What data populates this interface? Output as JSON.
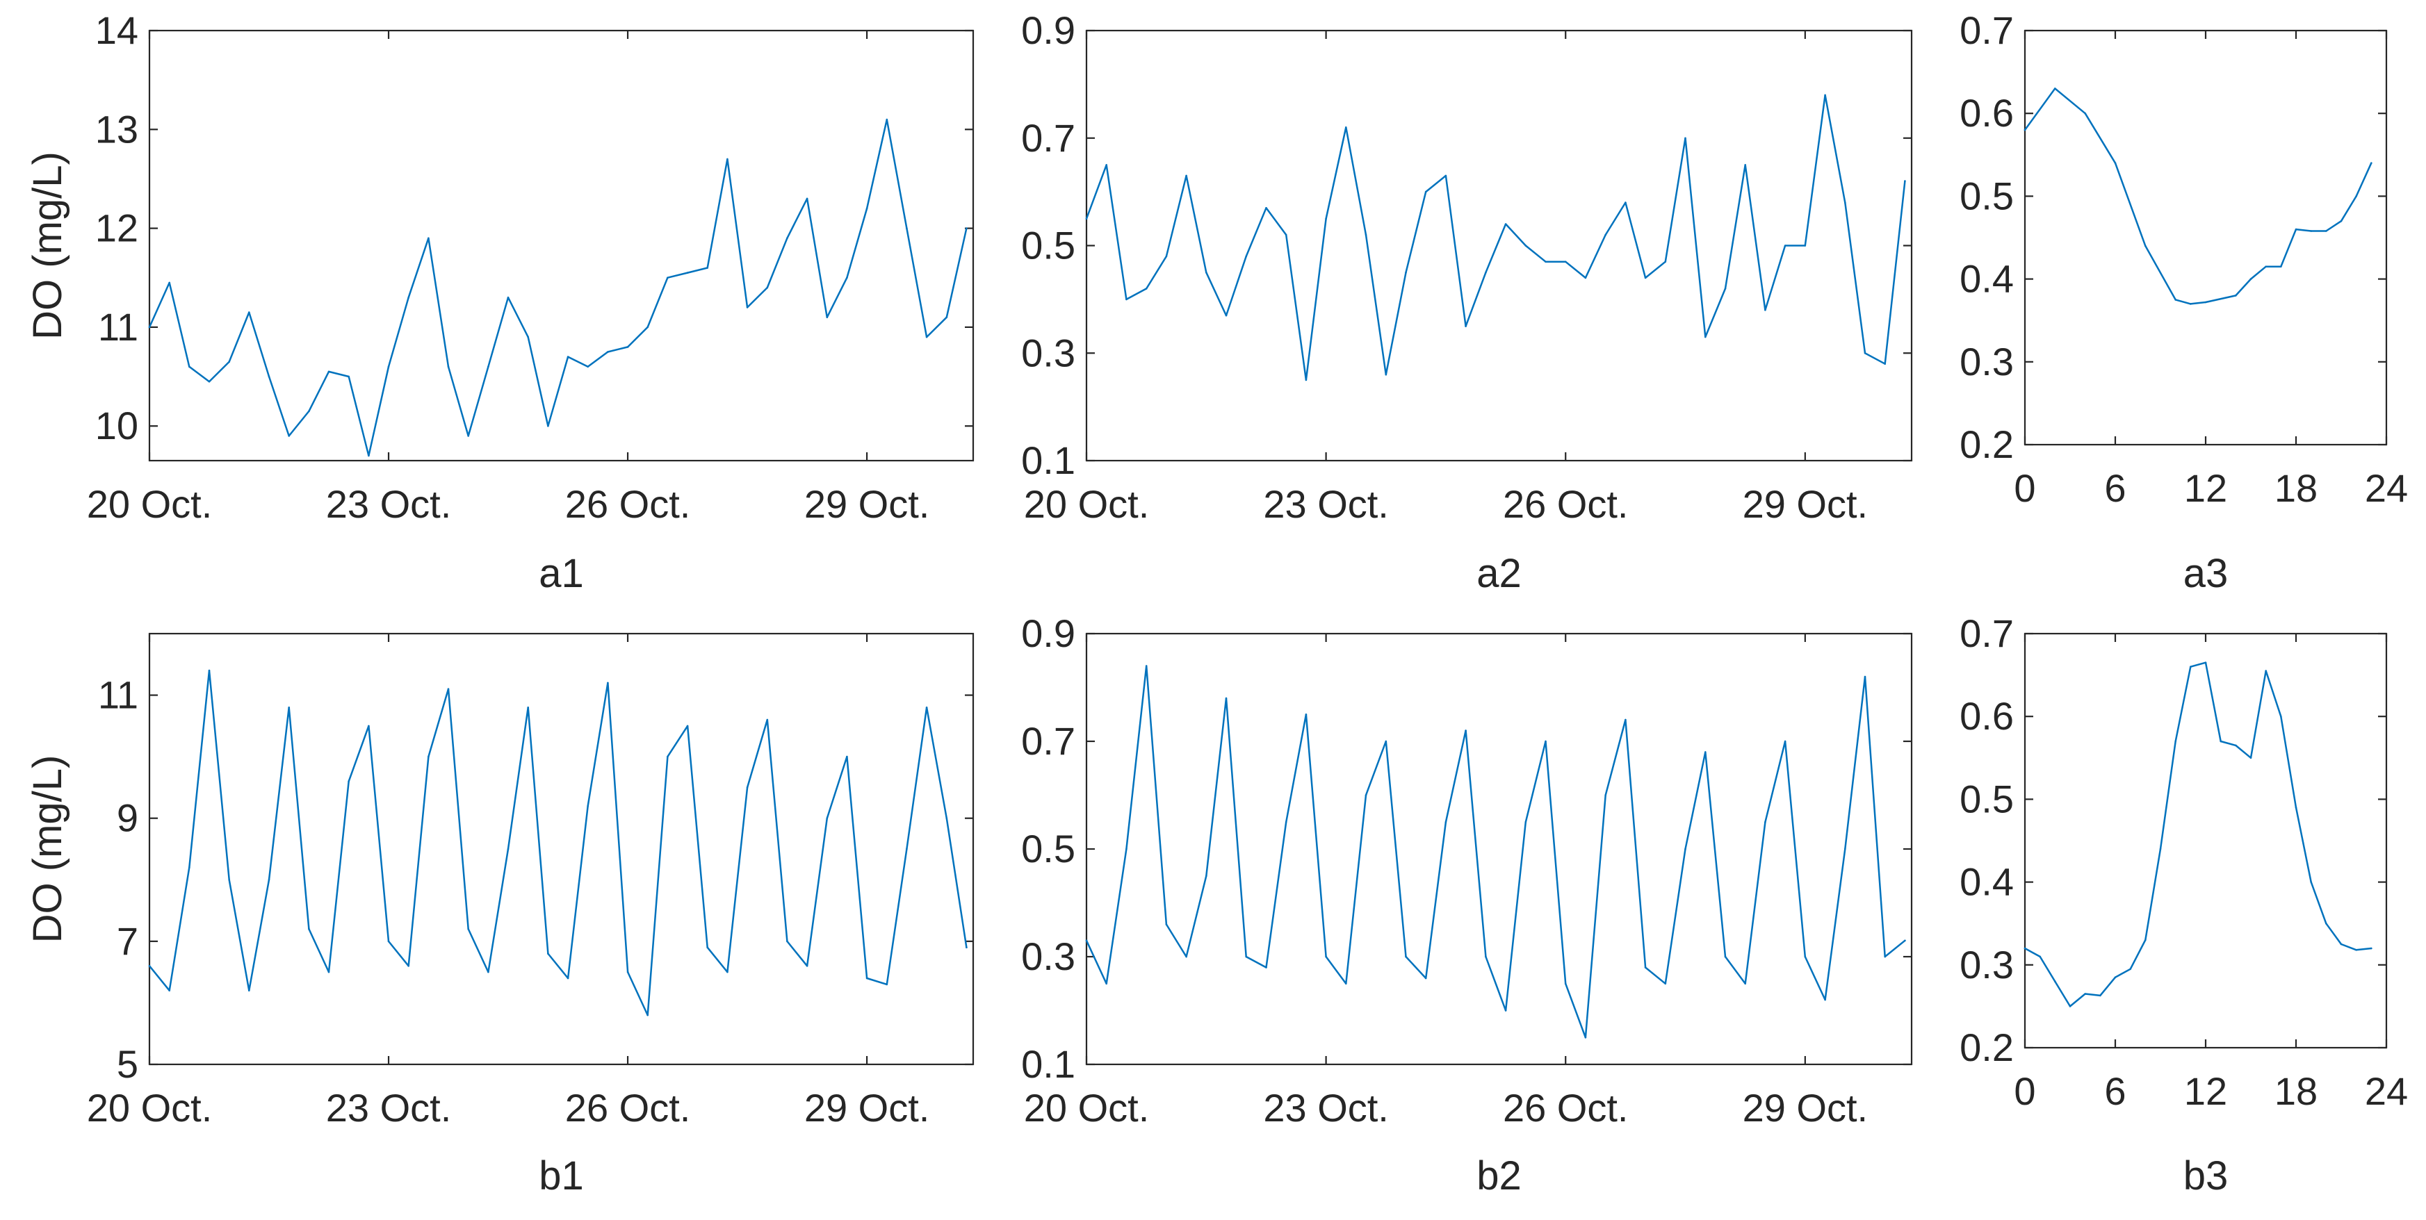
{
  "chart_data": [
    {
      "id": "a1",
      "type": "line",
      "xlabel": "a1",
      "ylabel": "DO (mg/L)",
      "xlim": [
        "2020-10-20T00:00",
        "2020-10-30T08:00"
      ],
      "xticks": [
        "20 Oct.",
        "23 Oct.",
        "26 Oct.",
        "29 Oct."
      ],
      "ylim": [
        9.65,
        14
      ],
      "yticks": [
        10,
        11,
        12,
        13,
        14
      ],
      "series": [
        {
          "x": [
            "2020-10-20T00:00",
            "2020-10-20T06:00",
            "2020-10-20T12:00",
            "2020-10-20T18:00",
            "2020-10-21T00:00",
            "2020-10-21T06:00",
            "2020-10-21T12:00",
            "2020-10-21T18:00",
            "2020-10-22T00:00",
            "2020-10-22T06:00",
            "2020-10-22T12:00",
            "2020-10-22T18:00",
            "2020-10-23T00:00",
            "2020-10-23T06:00",
            "2020-10-23T12:00",
            "2020-10-23T18:00",
            "2020-10-24T00:00",
            "2020-10-24T06:00",
            "2020-10-24T12:00",
            "2020-10-24T18:00",
            "2020-10-25T00:00",
            "2020-10-25T06:00",
            "2020-10-25T12:00",
            "2020-10-25T18:00",
            "2020-10-26T00:00",
            "2020-10-26T06:00",
            "2020-10-26T12:00",
            "2020-10-26T18:00",
            "2020-10-27T00:00",
            "2020-10-27T06:00",
            "2020-10-27T12:00",
            "2020-10-27T18:00",
            "2020-10-28T00:00",
            "2020-10-28T06:00",
            "2020-10-28T12:00",
            "2020-10-28T18:00",
            "2020-10-29T00:00",
            "2020-10-29T06:00",
            "2020-10-29T12:00",
            "2020-10-29T18:00",
            "2020-10-30T00:00",
            "2020-10-30T06:00"
          ],
          "values": [
            11.0,
            11.45,
            10.6,
            10.45,
            10.65,
            11.15,
            10.5,
            9.9,
            10.15,
            10.55,
            10.5,
            9.7,
            10.6,
            11.3,
            11.9,
            10.6,
            9.9,
            10.6,
            11.3,
            10.9,
            10.0,
            10.7,
            10.6,
            10.75,
            10.8,
            11.0,
            11.5,
            11.55,
            11.6,
            12.7,
            11.2,
            11.4,
            11.9,
            12.3,
            11.1,
            11.5,
            12.2,
            13.1,
            12.0,
            10.9,
            11.1,
            12.0
          ]
        }
      ]
    },
    {
      "id": "a2",
      "type": "line",
      "xlabel": "a2",
      "ylabel": "",
      "xlim": [
        "2020-10-20T00:00",
        "2020-10-30T08:00"
      ],
      "xticks": [
        "20 Oct.",
        "23 Oct.",
        "26 Oct.",
        "29 Oct."
      ],
      "ylim": [
        0.1,
        0.9
      ],
      "yticks": [
        0.1,
        0.3,
        0.5,
        0.7,
        0.9
      ],
      "series": [
        {
          "x": [
            "2020-10-20T00:00",
            "2020-10-20T06:00",
            "2020-10-20T12:00",
            "2020-10-20T18:00",
            "2020-10-21T00:00",
            "2020-10-21T06:00",
            "2020-10-21T12:00",
            "2020-10-21T18:00",
            "2020-10-22T00:00",
            "2020-10-22T06:00",
            "2020-10-22T12:00",
            "2020-10-22T18:00",
            "2020-10-23T00:00",
            "2020-10-23T06:00",
            "2020-10-23T12:00",
            "2020-10-23T18:00",
            "2020-10-24T00:00",
            "2020-10-24T06:00",
            "2020-10-24T12:00",
            "2020-10-24T18:00",
            "2020-10-25T00:00",
            "2020-10-25T06:00",
            "2020-10-25T12:00",
            "2020-10-25T18:00",
            "2020-10-26T00:00",
            "2020-10-26T06:00",
            "2020-10-26T12:00",
            "2020-10-26T18:00",
            "2020-10-27T00:00",
            "2020-10-27T06:00",
            "2020-10-27T12:00",
            "2020-10-27T18:00",
            "2020-10-28T00:00",
            "2020-10-28T06:00",
            "2020-10-28T12:00",
            "2020-10-28T18:00",
            "2020-10-29T00:00",
            "2020-10-29T06:00",
            "2020-10-29T12:00",
            "2020-10-29T18:00",
            "2020-10-30T00:00",
            "2020-10-30T06:00"
          ],
          "values": [
            0.55,
            0.65,
            0.4,
            0.42,
            0.48,
            0.63,
            0.45,
            0.37,
            0.48,
            0.57,
            0.52,
            0.25,
            0.55,
            0.72,
            0.52,
            0.26,
            0.45,
            0.6,
            0.63,
            0.35,
            0.45,
            0.54,
            0.5,
            0.47,
            0.47,
            0.44,
            0.52,
            0.58,
            0.44,
            0.47,
            0.7,
            0.33,
            0.42,
            0.65,
            0.38,
            0.5,
            0.5,
            0.78,
            0.58,
            0.3,
            0.28,
            0.62
          ]
        }
      ]
    },
    {
      "id": "a3",
      "type": "line",
      "xlabel": "a3",
      "ylabel": "",
      "xlim": [
        0,
        24
      ],
      "xticks": [
        0,
        6,
        12,
        18,
        24
      ],
      "ylim": [
        0.2,
        0.7
      ],
      "yticks": [
        0.2,
        0.3,
        0.4,
        0.5,
        0.6,
        0.7
      ],
      "series": [
        {
          "x": [
            0,
            2,
            4,
            6,
            8,
            10,
            11,
            12,
            14,
            15,
            16,
            17,
            18,
            19,
            20,
            21,
            22,
            23
          ],
          "values": [
            0.58,
            0.63,
            0.6,
            0.54,
            0.44,
            0.375,
            0.37,
            0.372,
            0.38,
            0.4,
            0.415,
            0.415,
            0.46,
            0.458,
            0.458,
            0.47,
            0.5,
            0.54
          ]
        }
      ]
    },
    {
      "id": "b1",
      "type": "line",
      "xlabel": "b1",
      "ylabel": "DO (mg/L)",
      "xlim": [
        "2020-10-20T00:00",
        "2020-10-30T08:00"
      ],
      "xticks": [
        "20 Oct.",
        "23 Oct.",
        "26 Oct.",
        "29 Oct."
      ],
      "ylim": [
        5,
        12
      ],
      "yticks": [
        5,
        7,
        9,
        11
      ],
      "series": [
        {
          "x": [
            "2020-10-20T00:00",
            "2020-10-20T06:00",
            "2020-10-20T12:00",
            "2020-10-20T18:00",
            "2020-10-21T00:00",
            "2020-10-21T06:00",
            "2020-10-21T12:00",
            "2020-10-21T18:00",
            "2020-10-22T00:00",
            "2020-10-22T06:00",
            "2020-10-22T12:00",
            "2020-10-22T18:00",
            "2020-10-23T00:00",
            "2020-10-23T06:00",
            "2020-10-23T12:00",
            "2020-10-23T18:00",
            "2020-10-24T00:00",
            "2020-10-24T06:00",
            "2020-10-24T12:00",
            "2020-10-24T18:00",
            "2020-10-25T00:00",
            "2020-10-25T06:00",
            "2020-10-25T12:00",
            "2020-10-25T18:00",
            "2020-10-26T00:00",
            "2020-10-26T06:00",
            "2020-10-26T12:00",
            "2020-10-26T18:00",
            "2020-10-27T00:00",
            "2020-10-27T06:00",
            "2020-10-27T12:00",
            "2020-10-27T18:00",
            "2020-10-28T00:00",
            "2020-10-28T06:00",
            "2020-10-28T12:00",
            "2020-10-28T18:00",
            "2020-10-29T00:00",
            "2020-10-29T06:00",
            "2020-10-29T12:00",
            "2020-10-29T18:00",
            "2020-10-30T00:00",
            "2020-10-30T06:00"
          ],
          "values": [
            6.6,
            6.2,
            8.2,
            11.4,
            8.0,
            6.2,
            8.0,
            10.8,
            7.2,
            6.5,
            9.6,
            10.5,
            7.0,
            6.6,
            10.0,
            11.1,
            7.2,
            6.5,
            8.5,
            10.8,
            6.8,
            6.4,
            9.2,
            11.2,
            6.5,
            5.8,
            10.0,
            10.5,
            6.9,
            6.5,
            9.5,
            10.6,
            7.0,
            6.6,
            9.0,
            10.0,
            6.4,
            6.3,
            8.5,
            10.8,
            9.0,
            6.9
          ]
        }
      ]
    },
    {
      "id": "b2",
      "type": "line",
      "xlabel": "b2",
      "ylabel": "",
      "xlim": [
        "2020-10-20T00:00",
        "2020-10-30T08:00"
      ],
      "xticks": [
        "20 Oct.",
        "23 Oct.",
        "26 Oct.",
        "29 Oct."
      ],
      "ylim": [
        0.1,
        0.9
      ],
      "yticks": [
        0.1,
        0.3,
        0.5,
        0.7,
        0.9
      ],
      "series": [
        {
          "x": [
            "2020-10-20T00:00",
            "2020-10-20T06:00",
            "2020-10-20T12:00",
            "2020-10-20T18:00",
            "2020-10-21T00:00",
            "2020-10-21T06:00",
            "2020-10-21T12:00",
            "2020-10-21T18:00",
            "2020-10-22T00:00",
            "2020-10-22T06:00",
            "2020-10-22T12:00",
            "2020-10-22T18:00",
            "2020-10-23T00:00",
            "2020-10-23T06:00",
            "2020-10-23T12:00",
            "2020-10-23T18:00",
            "2020-10-24T00:00",
            "2020-10-24T06:00",
            "2020-10-24T12:00",
            "2020-10-24T18:00",
            "2020-10-25T00:00",
            "2020-10-25T06:00",
            "2020-10-25T12:00",
            "2020-10-25T18:00",
            "2020-10-26T00:00",
            "2020-10-26T06:00",
            "2020-10-26T12:00",
            "2020-10-26T18:00",
            "2020-10-27T00:00",
            "2020-10-27T06:00",
            "2020-10-27T12:00",
            "2020-10-27T18:00",
            "2020-10-28T00:00",
            "2020-10-28T06:00",
            "2020-10-28T12:00",
            "2020-10-28T18:00",
            "2020-10-29T00:00",
            "2020-10-29T06:00",
            "2020-10-29T12:00",
            "2020-10-29T18:00",
            "2020-10-30T00:00",
            "2020-10-30T06:00"
          ],
          "values": [
            0.33,
            0.25,
            0.5,
            0.84,
            0.36,
            0.3,
            0.45,
            0.78,
            0.3,
            0.28,
            0.55,
            0.75,
            0.3,
            0.25,
            0.6,
            0.7,
            0.3,
            0.26,
            0.55,
            0.72,
            0.3,
            0.2,
            0.55,
            0.7,
            0.25,
            0.15,
            0.6,
            0.74,
            0.28,
            0.25,
            0.5,
            0.68,
            0.3,
            0.25,
            0.55,
            0.7,
            0.3,
            0.22,
            0.5,
            0.82,
            0.3,
            0.33
          ]
        }
      ]
    },
    {
      "id": "b3",
      "type": "line",
      "xlabel": "b3",
      "ylabel": "",
      "xlim": [
        0,
        24
      ],
      "xticks": [
        0,
        6,
        12,
        18,
        24
      ],
      "ylim": [
        0.2,
        0.7
      ],
      "yticks": [
        0.2,
        0.3,
        0.4,
        0.5,
        0.6,
        0.7
      ],
      "series": [
        {
          "x": [
            0,
            1,
            2,
            3,
            4,
            5,
            6,
            7,
            8,
            9,
            10,
            11,
            12,
            13,
            14,
            15,
            16,
            17,
            18,
            19,
            20,
            21,
            22,
            23
          ],
          "values": [
            0.32,
            0.31,
            0.28,
            0.25,
            0.265,
            0.263,
            0.285,
            0.295,
            0.33,
            0.44,
            0.57,
            0.66,
            0.665,
            0.57,
            0.565,
            0.55,
            0.655,
            0.6,
            0.49,
            0.4,
            0.35,
            0.325,
            0.318,
            0.32
          ]
        }
      ]
    }
  ]
}
